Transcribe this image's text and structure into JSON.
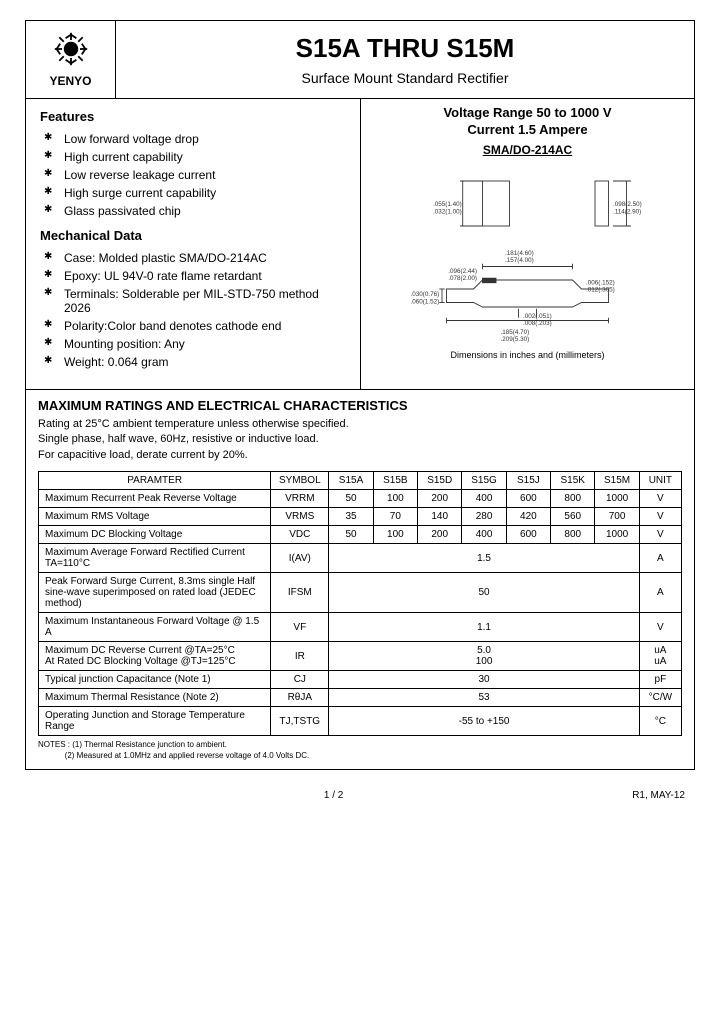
{
  "header": {
    "logo_label": "YENYO",
    "title": "S15A THRU S15M",
    "subtitle": "Surface Mount Standard Rectifier"
  },
  "features": {
    "heading": "Features",
    "items": [
      "Low forward voltage drop",
      "High current capability",
      "Low reverse leakage current",
      "High surge current capability",
      "Glass passivated chip"
    ]
  },
  "mechanical": {
    "heading": "Mechanical Data",
    "items": [
      "Case: Molded plastic SMA/DO-214AC",
      "Epoxy: UL 94V-0 rate flame retardant",
      "Terminals: Solderable per MIL-STD-750 method 2026",
      "Polarity:Color band denotes cathode end",
      "Mounting position: Any",
      "Weight: 0.064 gram"
    ]
  },
  "diagram": {
    "voltage_line1": "Voltage Range 50 to 1000 V",
    "voltage_line2": "Current 1.5 Ampere",
    "package": "SMA/DO-214AC",
    "dim_note": "Dimensions in inches and (millimeters)"
  },
  "ratings": {
    "title": "MAXIMUM RATINGS AND ELECTRICAL CHARACTERISTICS",
    "desc1": "Rating at 25°C ambient temperature unless otherwise specified.",
    "desc2": "Single phase, half wave, 60Hz, resistive or inductive load.",
    "desc3": "For capacitive load, derate current by 20%."
  },
  "table": {
    "headers": [
      "PARAMTER",
      "SYMBOL",
      "S15A",
      "S15B",
      "S15D",
      "S15G",
      "S15J",
      "S15K",
      "S15M",
      "UNIT"
    ],
    "col_widths": [
      "220px",
      "55px",
      "42px",
      "42px",
      "42px",
      "42px",
      "42px",
      "42px",
      "42px",
      "40px"
    ],
    "rows": [
      {
        "param": "Maximum Recurrent Peak Reverse Voltage",
        "symbol": "VRRM",
        "values": [
          "50",
          "100",
          "200",
          "400",
          "600",
          "800",
          "1000"
        ],
        "unit": "V"
      },
      {
        "param": "Maximum RMS Voltage",
        "symbol": "VRMS",
        "values": [
          "35",
          "70",
          "140",
          "280",
          "420",
          "560",
          "700"
        ],
        "unit": "V"
      },
      {
        "param": "Maximum DC Blocking Voltage",
        "symbol": "VDC",
        "values": [
          "50",
          "100",
          "200",
          "400",
          "600",
          "800",
          "1000"
        ],
        "unit": "V"
      },
      {
        "param": "Maximum Average Forward Rectified Current TA=110°C",
        "symbol": "I(AV)",
        "merged": "1.5",
        "unit": "A"
      },
      {
        "param": "Peak Forward Surge Current, 8.3ms single Half sine-wave superimposed on rated load (JEDEC method)",
        "symbol": "IFSM",
        "merged": "50",
        "unit": "A"
      },
      {
        "param": "Maximum Instantaneous Forward Voltage @ 1.5 A",
        "symbol": "VF",
        "merged": "1.1",
        "unit": "V"
      },
      {
        "param": "Maximum DC Reverse Current @TA=25°C\nAt Rated DC Blocking Voltage @TJ=125°C",
        "symbol": "IR",
        "merged": "5.0\n100",
        "unit": "uA\nuA"
      },
      {
        "param": "Typical junction Capacitance (Note 1)",
        "symbol": "CJ",
        "merged": "30",
        "unit": "pF"
      },
      {
        "param": "Maximum Thermal Resistance (Note 2)",
        "symbol": "RθJA",
        "merged": "53",
        "unit": "°C/W"
      },
      {
        "param": "Operating Junction and Storage Temperature Range",
        "symbol": "TJ,TSTG",
        "merged": "-55 to +150",
        "unit": "°C"
      }
    ]
  },
  "notes": {
    "line1": "NOTES : (1) Thermal Resistance junction to ambient.",
    "line2": "(2) Measured at 1.0MHz and applied reverse voltage of 4.0 Volts DC."
  },
  "footer": {
    "page": "1 / 2",
    "rev": "R1, MAY-12"
  },
  "colors": {
    "border": "#000000",
    "text": "#000000",
    "diagram_line": "#333333"
  }
}
